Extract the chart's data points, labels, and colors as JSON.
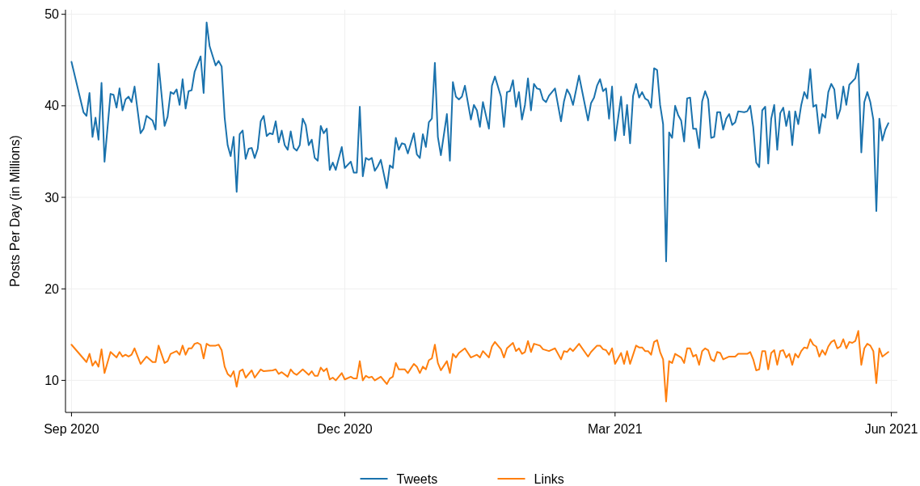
{
  "chart_data": {
    "type": "line",
    "ylabel": "Posts Per Day (in Millions)",
    "xlim": [
      "2020-08-30",
      "2021-06-03"
    ],
    "xticks": [
      {
        "value": "2020-09-01",
        "label": "Sep 2020"
      },
      {
        "value": "2020-12-01",
        "label": "Dec 2020"
      },
      {
        "value": "2021-03-01",
        "label": "Mar 2021"
      },
      {
        "value": "2021-06-01",
        "label": "Jun 2021"
      }
    ],
    "ylim": [
      6.5,
      50.5
    ],
    "yticks": [
      10,
      20,
      30,
      40,
      50
    ],
    "grid": true,
    "legend": "bottom",
    "line_style": "solid",
    "marker": "none",
    "series": [
      {
        "name": "Tweets",
        "color": "#1a72ad",
        "x": [
          "2020-09-01",
          "2020-09-05",
          "2020-09-06",
          "2020-09-07",
          "2020-09-08",
          "2020-09-09",
          "2020-09-10",
          "2020-09-11",
          "2020-09-12",
          "2020-09-14",
          "2020-09-15",
          "2020-09-16",
          "2020-09-17",
          "2020-09-18",
          "2020-09-19",
          "2020-09-20",
          "2020-09-21",
          "2020-09-22",
          "2020-09-24",
          "2020-09-25",
          "2020-09-26",
          "2020-09-28",
          "2020-09-29",
          "2020-09-30",
          "2020-10-02",
          "2020-10-03",
          "2020-10-04",
          "2020-10-05",
          "2020-10-06",
          "2020-10-07",
          "2020-10-08",
          "2020-10-09",
          "2020-10-10",
          "2020-10-11",
          "2020-10-12",
          "2020-10-14",
          "2020-10-15",
          "2020-10-16",
          "2020-10-17",
          "2020-10-19",
          "2020-10-20",
          "2020-10-21",
          "2020-10-22",
          "2020-10-23",
          "2020-10-24",
          "2020-10-25",
          "2020-10-26",
          "2020-10-27",
          "2020-10-28",
          "2020-10-29",
          "2020-10-30",
          "2020-10-31",
          "2020-11-01",
          "2020-11-02",
          "2020-11-03",
          "2020-11-04",
          "2020-11-05",
          "2020-11-06",
          "2020-11-07",
          "2020-11-08",
          "2020-11-09",
          "2020-11-10",
          "2020-11-11",
          "2020-11-12",
          "2020-11-13",
          "2020-11-14",
          "2020-11-15",
          "2020-11-16",
          "2020-11-17",
          "2020-11-18",
          "2020-11-19",
          "2020-11-20",
          "2020-11-21",
          "2020-11-22",
          "2020-11-23",
          "2020-11-24",
          "2020-11-25",
          "2020-11-26",
          "2020-11-27",
          "2020-11-28",
          "2020-11-30",
          "2020-12-01",
          "2020-12-03",
          "2020-12-04",
          "2020-12-05",
          "2020-12-06",
          "2020-12-07",
          "2020-12-08",
          "2020-12-09",
          "2020-12-10",
          "2020-12-11",
          "2020-12-12",
          "2020-12-13",
          "2020-12-15",
          "2020-12-16",
          "2020-12-17",
          "2020-12-18",
          "2020-12-19",
          "2020-12-20",
          "2020-12-21",
          "2020-12-22",
          "2020-12-24",
          "2020-12-25",
          "2020-12-26",
          "2020-12-27",
          "2020-12-28",
          "2020-12-29",
          "2020-12-30",
          "2020-12-31",
          "2021-01-01",
          "2021-01-02",
          "2021-01-04",
          "2021-01-05",
          "2021-01-06",
          "2021-01-07",
          "2021-01-08",
          "2021-01-09",
          "2021-01-10",
          "2021-01-12",
          "2021-01-13",
          "2021-01-14",
          "2021-01-15",
          "2021-01-16",
          "2021-01-18",
          "2021-01-19",
          "2021-01-20",
          "2021-01-22",
          "2021-01-23",
          "2021-01-24",
          "2021-01-25",
          "2021-01-26",
          "2021-01-27",
          "2021-01-28",
          "2021-01-29",
          "2021-01-30",
          "2021-01-31",
          "2021-02-01",
          "2021-02-02",
          "2021-02-03",
          "2021-02-04",
          "2021-02-05",
          "2021-02-06",
          "2021-02-07",
          "2021-02-09",
          "2021-02-11",
          "2021-02-12",
          "2021-02-13",
          "2021-02-14",
          "2021-02-15",
          "2021-02-17",
          "2021-02-20",
          "2021-02-21",
          "2021-02-22",
          "2021-02-23",
          "2021-02-24",
          "2021-02-25",
          "2021-02-26",
          "2021-02-27",
          "2021-02-28",
          "2021-03-01",
          "2021-03-03",
          "2021-03-04",
          "2021-03-05",
          "2021-03-06",
          "2021-03-07",
          "2021-03-08",
          "2021-03-09",
          "2021-03-10",
          "2021-03-11",
          "2021-03-12",
          "2021-03-13",
          "2021-03-14",
          "2021-03-15",
          "2021-03-16",
          "2021-03-17",
          "2021-03-18",
          "2021-03-19",
          "2021-03-20",
          "2021-03-21",
          "2021-03-22",
          "2021-03-23",
          "2021-03-24",
          "2021-03-25",
          "2021-03-26",
          "2021-03-27",
          "2021-03-28",
          "2021-03-29",
          "2021-03-30",
          "2021-03-31",
          "2021-04-01",
          "2021-04-02",
          "2021-04-03",
          "2021-04-04",
          "2021-04-05",
          "2021-04-06",
          "2021-04-07",
          "2021-04-08",
          "2021-04-09",
          "2021-04-10",
          "2021-04-11",
          "2021-04-13",
          "2021-04-14",
          "2021-04-15",
          "2021-04-16",
          "2021-04-17",
          "2021-04-18",
          "2021-04-19",
          "2021-04-20",
          "2021-04-21",
          "2021-04-22",
          "2021-04-23",
          "2021-04-24",
          "2021-04-25",
          "2021-04-26",
          "2021-04-27",
          "2021-04-28",
          "2021-04-29",
          "2021-04-30",
          "2021-05-01",
          "2021-05-02",
          "2021-05-03",
          "2021-05-04",
          "2021-05-05",
          "2021-05-06",
          "2021-05-07",
          "2021-05-08",
          "2021-05-09",
          "2021-05-10",
          "2021-05-11",
          "2021-05-12",
          "2021-05-13",
          "2021-05-14",
          "2021-05-15",
          "2021-05-16",
          "2021-05-17",
          "2021-05-18",
          "2021-05-20",
          "2021-05-21",
          "2021-05-22",
          "2021-05-23",
          "2021-05-24",
          "2021-05-25",
          "2021-05-26",
          "2021-05-27",
          "2021-05-28",
          "2021-05-29",
          "2021-05-30",
          "2021-05-31"
        ],
        "values": [
          44.8,
          39.3,
          38.9,
          41.4,
          36.6,
          38.7,
          36.3,
          42.5,
          33.9,
          41.3,
          41.2,
          39.8,
          41.9,
          39.5,
          40.7,
          41.0,
          40.4,
          42.1,
          37.0,
          37.5,
          38.9,
          38.4,
          37.4,
          44.6,
          37.8,
          38.8,
          41.5,
          41.3,
          41.8,
          40.1,
          42.9,
          39.7,
          41.6,
          41.7,
          43.7,
          45.4,
          41.4,
          49.1,
          46.5,
          44.4,
          44.9,
          44.3,
          38.7,
          35.7,
          34.5,
          36.6,
          30.6,
          36.9,
          37.3,
          34.2,
          35.3,
          35.4,
          34.3,
          35.3,
          38.3,
          38.9,
          36.7,
          37.0,
          36.9,
          38.3,
          36.0,
          37.3,
          35.7,
          35.2,
          37.2,
          35.4,
          35.1,
          35.7,
          38.6,
          37.9,
          35.7,
          36.3,
          34.3,
          34.0,
          37.8,
          37.0,
          37.5,
          33.0,
          33.8,
          33.0,
          35.5,
          33.2,
          33.9,
          32.7,
          32.7,
          39.9,
          32.3,
          34.3,
          34.1,
          34.3,
          32.9,
          33.4,
          34.1,
          31.0,
          33.5,
          33.2,
          36.5,
          35.2,
          35.9,
          35.8,
          34.8,
          37.0,
          34.7,
          34.3,
          36.9,
          35.5,
          38.2,
          38.6,
          44.7,
          36.6,
          34.6,
          39.1,
          34.0,
          42.6,
          41.0,
          40.7,
          41.0,
          42.2,
          38.5,
          40.1,
          39.5,
          37.7,
          40.4,
          37.5,
          42.2,
          43.2,
          41.0,
          37.7,
          41.5,
          41.6,
          42.8,
          39.9,
          41.5,
          38.5,
          40.1,
          43.0,
          39.5,
          42.4,
          41.9,
          41.8,
          40.7,
          40.4,
          41.1,
          41.9,
          38.3,
          40.5,
          41.8,
          41.2,
          40.1,
          43.3,
          38.4,
          40.3,
          40.9,
          42.2,
          42.9,
          41.6,
          41.9,
          38.6,
          42.1,
          36.2,
          41.0,
          36.8,
          40.1,
          35.9,
          41.1,
          42.4,
          40.9,
          41.5,
          40.8,
          40.6,
          39.8,
          44.1,
          43.9,
          40.1,
          38.0,
          23.0,
          37.1,
          36.5,
          40.0,
          39.0,
          38.4,
          36.1,
          40.8,
          40.9,
          37.5,
          37.5,
          35.4,
          40.5,
          41.6,
          40.7,
          36.5,
          36.6,
          39.3,
          39.3,
          37.4,
          38.6,
          39.1,
          37.9,
          38.2,
          39.4,
          39.3,
          39.4,
          40.0,
          37.7,
          33.8,
          33.3,
          39.5,
          39.9,
          33.7,
          38.6,
          40.1,
          35.2,
          39.2,
          39.8,
          37.8,
          39.4,
          35.7,
          39.4,
          38.0,
          40.1,
          41.5,
          40.8,
          44.0,
          39.9,
          40.1,
          37.0,
          39.1,
          38.7,
          41.5,
          42.4,
          41.8,
          38.6,
          39.6,
          42.1,
          40.1,
          42.3,
          43.0,
          44.6,
          34.9,
          40.4,
          41.5,
          40.4,
          38.5,
          28.5,
          38.6,
          36.2,
          37.4,
          38.1
        ]
      },
      {
        "name": "Links",
        "color": "#ff7f0e",
        "x": [
          "2020-09-01",
          "2020-09-06",
          "2020-09-07",
          "2020-09-08",
          "2020-09-09",
          "2020-09-10",
          "2020-09-11",
          "2020-09-12",
          "2020-09-14",
          "2020-09-16",
          "2020-09-17",
          "2020-09-18",
          "2020-09-19",
          "2020-09-20",
          "2020-09-21",
          "2020-09-22",
          "2020-09-24",
          "2020-09-26",
          "2020-09-28",
          "2020-09-29",
          "2020-09-30",
          "2020-10-02",
          "2020-10-03",
          "2020-10-04",
          "2020-10-06",
          "2020-10-07",
          "2020-10-08",
          "2020-10-09",
          "2020-10-10",
          "2020-10-11",
          "2020-10-12",
          "2020-10-13",
          "2020-10-14",
          "2020-10-15",
          "2020-10-16",
          "2020-10-17",
          "2020-10-19",
          "2020-10-20",
          "2020-10-21",
          "2020-10-22",
          "2020-10-23",
          "2020-10-24",
          "2020-10-25",
          "2020-10-26",
          "2020-10-27",
          "2020-10-28",
          "2020-10-29",
          "2020-10-31",
          "2020-11-01",
          "2020-11-03",
          "2020-11-04",
          "2020-11-07",
          "2020-11-08",
          "2020-11-09",
          "2020-11-10",
          "2020-11-12",
          "2020-11-13",
          "2020-11-14",
          "2020-11-15",
          "2020-11-17",
          "2020-11-19",
          "2020-11-20",
          "2020-11-21",
          "2020-11-22",
          "2020-11-23",
          "2020-11-24",
          "2020-11-25",
          "2020-11-26",
          "2020-11-27",
          "2020-11-28",
          "2020-11-30",
          "2020-12-01",
          "2020-12-03",
          "2020-12-04",
          "2020-12-05",
          "2020-12-06",
          "2020-12-07",
          "2020-12-08",
          "2020-12-09",
          "2020-12-10",
          "2020-12-11",
          "2020-12-13",
          "2020-12-15",
          "2020-12-16",
          "2020-12-17",
          "2020-12-18",
          "2020-12-19",
          "2020-12-21",
          "2020-12-22",
          "2020-12-24",
          "2020-12-25",
          "2020-12-26",
          "2020-12-27",
          "2020-12-28",
          "2020-12-29",
          "2020-12-30",
          "2020-12-31",
          "2021-01-01",
          "2021-01-02",
          "2021-01-04",
          "2021-01-05",
          "2021-01-06",
          "2021-01-07",
          "2021-01-08",
          "2021-01-10",
          "2021-01-12",
          "2021-01-14",
          "2021-01-15",
          "2021-01-16",
          "2021-01-18",
          "2021-01-19",
          "2021-01-20",
          "2021-01-22",
          "2021-01-23",
          "2021-01-24",
          "2021-01-26",
          "2021-01-27",
          "2021-01-28",
          "2021-01-29",
          "2021-01-30",
          "2021-01-31",
          "2021-02-01",
          "2021-02-02",
          "2021-02-04",
          "2021-02-05",
          "2021-02-07",
          "2021-02-09",
          "2021-02-11",
          "2021-02-12",
          "2021-02-13",
          "2021-02-14",
          "2021-02-15",
          "2021-02-17",
          "2021-02-20",
          "2021-02-21",
          "2021-02-23",
          "2021-02-24",
          "2021-02-25",
          "2021-02-26",
          "2021-02-27",
          "2021-02-28",
          "2021-03-01",
          "2021-03-03",
          "2021-03-04",
          "2021-03-05",
          "2021-03-06",
          "2021-03-08",
          "2021-03-09",
          "2021-03-10",
          "2021-03-11",
          "2021-03-12",
          "2021-03-13",
          "2021-03-14",
          "2021-03-15",
          "2021-03-16",
          "2021-03-17",
          "2021-03-18",
          "2021-03-19",
          "2021-03-20",
          "2021-03-21",
          "2021-03-23",
          "2021-03-24",
          "2021-03-25",
          "2021-03-26",
          "2021-03-27",
          "2021-03-28",
          "2021-03-29",
          "2021-03-30",
          "2021-03-31",
          "2021-04-01",
          "2021-04-02",
          "2021-04-03",
          "2021-04-04",
          "2021-04-05",
          "2021-04-06",
          "2021-04-08",
          "2021-04-10",
          "2021-04-11",
          "2021-04-13",
          "2021-04-14",
          "2021-04-15",
          "2021-04-16",
          "2021-04-17",
          "2021-04-18",
          "2021-04-19",
          "2021-04-20",
          "2021-04-21",
          "2021-04-22",
          "2021-04-23",
          "2021-04-24",
          "2021-04-25",
          "2021-04-26",
          "2021-04-27",
          "2021-04-28",
          "2021-04-29",
          "2021-04-30",
          "2021-05-01",
          "2021-05-02",
          "2021-05-03",
          "2021-05-04",
          "2021-05-05",
          "2021-05-06",
          "2021-05-07",
          "2021-05-08",
          "2021-05-09",
          "2021-05-10",
          "2021-05-11",
          "2021-05-12",
          "2021-05-13",
          "2021-05-14",
          "2021-05-15",
          "2021-05-16",
          "2021-05-17",
          "2021-05-18",
          "2021-05-19",
          "2021-05-20",
          "2021-05-21",
          "2021-05-22",
          "2021-05-23",
          "2021-05-24",
          "2021-05-25",
          "2021-05-26",
          "2021-05-27",
          "2021-05-28",
          "2021-05-29",
          "2021-05-31"
        ],
        "values": [
          13.9,
          12.0,
          12.9,
          11.6,
          12.1,
          11.5,
          13.4,
          10.8,
          13.1,
          12.5,
          13.1,
          12.6,
          12.8,
          12.6,
          12.8,
          13.5,
          11.8,
          12.6,
          12.0,
          12.0,
          13.8,
          11.9,
          12.1,
          12.9,
          13.2,
          12.8,
          13.8,
          12.8,
          13.5,
          13.5,
          14.0,
          14.1,
          13.9,
          12.4,
          14.0,
          13.8,
          13.8,
          13.9,
          13.3,
          11.5,
          10.7,
          10.4,
          11.0,
          9.3,
          11.0,
          11.2,
          10.3,
          11.1,
          10.3,
          11.2,
          11.0,
          11.1,
          11.2,
          10.7,
          10.9,
          10.4,
          11.2,
          10.8,
          10.6,
          11.2,
          10.6,
          11.0,
          10.5,
          10.5,
          11.4,
          11.0,
          11.3,
          10.1,
          10.3,
          10.0,
          10.8,
          10.1,
          10.4,
          10.2,
          10.2,
          12.1,
          10.0,
          10.5,
          10.3,
          10.4,
          10.0,
          10.4,
          9.6,
          10.2,
          10.4,
          11.9,
          11.2,
          11.2,
          10.8,
          11.8,
          11.5,
          10.8,
          11.5,
          11.2,
          12.2,
          12.4,
          13.9,
          11.9,
          11.1,
          12.1,
          10.8,
          12.9,
          12.5,
          13.0,
          13.5,
          12.5,
          12.8,
          12.5,
          13.2,
          12.5,
          13.7,
          14.2,
          13.4,
          12.5,
          13.5,
          14.1,
          13.2,
          13.5,
          12.9,
          13.1,
          14.3,
          13.1,
          14.0,
          13.8,
          13.4,
          13.2,
          13.5,
          12.3,
          13.2,
          13.1,
          13.5,
          13.2,
          14.0,
          12.6,
          13.1,
          13.8,
          13.8,
          13.4,
          13.3,
          12.8,
          13.5,
          11.8,
          13.0,
          11.8,
          13.2,
          11.8,
          13.8,
          13.6,
          13.6,
          13.2,
          13.2,
          12.8,
          14.2,
          14.4,
          13.1,
          12.3,
          7.7,
          12.1,
          11.9,
          12.9,
          12.5,
          11.9,
          13.5,
          13.5,
          12.6,
          12.8,
          11.7,
          13.2,
          13.5,
          13.3,
          12.3,
          12.1,
          13.1,
          13.0,
          12.3,
          12.6,
          12.6,
          12.9,
          12.9,
          12.9,
          13.1,
          12.3,
          11.1,
          11.2,
          13.2,
          13.2,
          11.2,
          13.0,
          13.3,
          11.7,
          13.2,
          13.3,
          12.5,
          12.9,
          11.7,
          12.9,
          12.5,
          13.2,
          13.6,
          13.5,
          14.5,
          13.9,
          13.7,
          12.6,
          13.3,
          12.8,
          13.7,
          14.2,
          14.4,
          13.5,
          13.7,
          14.5,
          13.5,
          14.2,
          14.1,
          14.3,
          15.4,
          11.7,
          13.5,
          14.0,
          13.8,
          13.2,
          9.7,
          13.5,
          12.6,
          13.1
        ]
      }
    ]
  }
}
